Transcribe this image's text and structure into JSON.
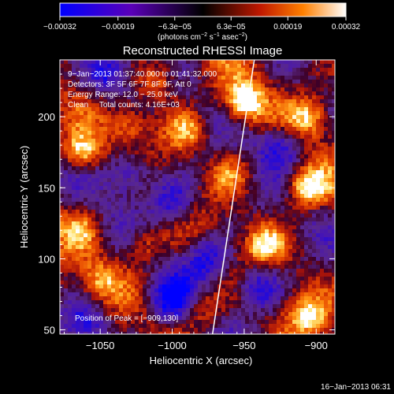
{
  "chart_data": {
    "type": "heatmap",
    "title": "Reconstructed RHESSI Image",
    "xlabel": "Heliocentric X (arcsec)",
    "ylabel": "Heliocentric Y (arcsec)",
    "xlim": [
      -1078,
      -887
    ],
    "ylim": [
      47,
      240
    ],
    "x_ticks": [
      -1050,
      -1000,
      -950,
      -900
    ],
    "x_tick_labels": [
      "−1050",
      "−1000",
      "−950",
      "−900"
    ],
    "y_ticks": [
      50,
      100,
      150,
      200
    ],
    "y_tick_labels": [
      "50",
      "100",
      "150",
      "200"
    ],
    "grid": false,
    "colorbar": {
      "range": [
        -0.00032,
        0.00032
      ],
      "ticks": [
        -0.00032,
        -0.00019,
        -6.3e-05,
        6.3e-05,
        0.00019,
        0.00032
      ],
      "tick_labels": [
        "−0.00032",
        "−0.00019",
        "−6.3e−05",
        "6.3e−05",
        "0.00019",
        "0.00032"
      ],
      "unit_label": "(photons cm",
      "unit_sup1": "−2",
      "unit_mid": " s",
      "unit_sup2": "−1",
      "unit_mid2": " asec",
      "unit_sup3": "−2",
      "unit_end": ")"
    },
    "annotations": [
      "9−Jan−2013 01:37:40.000 to 01:41:32.000",
      "Detectors: 3F 5F 6F 7F 8F 9F, Att 0",
      "Energy Range: 12.0 − 25.0 keV",
      "Clean     Total counts: 4.16E+03"
    ],
    "peak_label": "Position of Peak = [−909,130]",
    "peak_position": [
      -909,
      130
    ],
    "limb_line": {
      "x": [
        -972,
        -943
      ],
      "y": [
        47,
        240
      ]
    },
    "bright_sources": [
      {
        "x": -950,
        "y": 210,
        "strength": 1.0
      },
      {
        "x": -907,
        "y": 150,
        "strength": 1.0
      },
      {
        "x": -1063,
        "y": 175,
        "strength": 0.85
      },
      {
        "x": -990,
        "y": 190,
        "strength": 0.7
      },
      {
        "x": -1010,
        "y": 225,
        "strength": 0.6
      },
      {
        "x": -905,
        "y": 200,
        "strength": 0.7
      },
      {
        "x": -935,
        "y": 110,
        "strength": 0.75
      },
      {
        "x": -905,
        "y": 60,
        "strength": 0.7
      },
      {
        "x": -1020,
        "y": 110,
        "strength": 0.55
      },
      {
        "x": -1050,
        "y": 85,
        "strength": 0.55
      },
      {
        "x": -980,
        "y": 65,
        "strength": 0.55
      },
      {
        "x": -1065,
        "y": 120,
        "strength": 0.5
      },
      {
        "x": -960,
        "y": 160,
        "strength": 0.5
      },
      {
        "x": -1030,
        "y": 195,
        "strength": 0.45
      }
    ],
    "dark_regions": [
      {
        "x": -1030,
        "y": 160
      },
      {
        "x": -1000,
        "y": 140
      },
      {
        "x": -1045,
        "y": 230
      },
      {
        "x": -975,
        "y": 100
      },
      {
        "x": -1000,
        "y": 70
      },
      {
        "x": -1060,
        "y": 55
      },
      {
        "x": -925,
        "y": 180
      },
      {
        "x": -940,
        "y": 80
      }
    ]
  },
  "timestamp": "16−Jan−2013 06:31"
}
